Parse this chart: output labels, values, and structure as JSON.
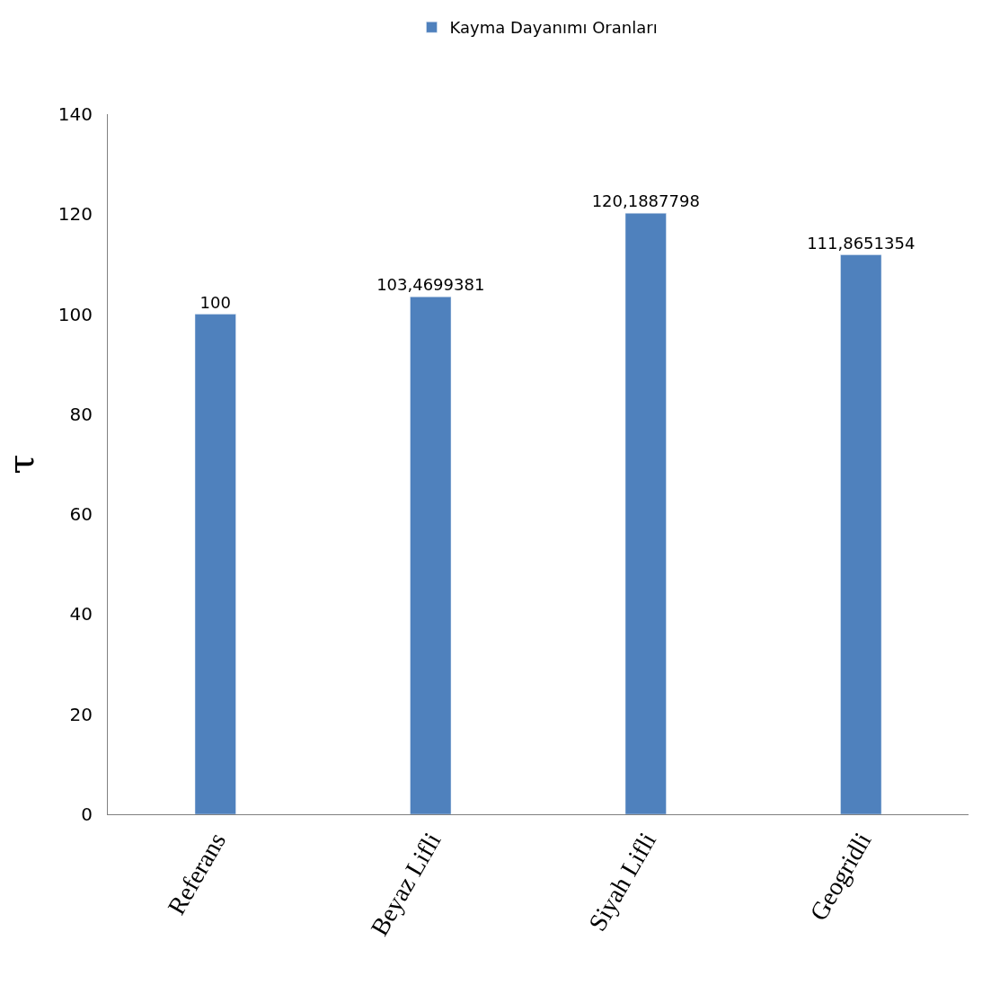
{
  "chart_data": {
    "type": "bar",
    "ylabel": "τ",
    "categories": [
      "Referans",
      "Beyaz Lifli",
      "Siyah Lifli",
      "Geogridli"
    ],
    "series": [
      {
        "name": "Kayma Dayanımı Oranları",
        "color": "#4f81bd",
        "values": [
          100,
          103.4699381,
          120.1887798,
          111.8651354
        ],
        "value_labels": [
          "100",
          "103,4699381",
          "120,1887798",
          "111,8651354"
        ]
      }
    ],
    "ylim": [
      0,
      140
    ],
    "yticks": [
      0,
      20,
      40,
      60,
      80,
      100,
      120,
      140
    ],
    "grid": false,
    "legend": "top"
  }
}
